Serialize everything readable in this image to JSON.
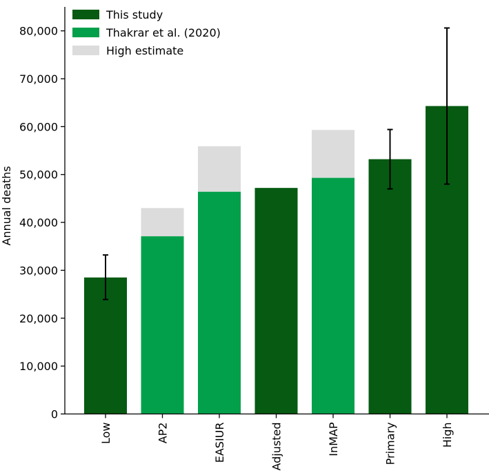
{
  "chart_data": {
    "type": "bar",
    "title": "",
    "xlabel": "",
    "ylabel": "Annual deaths",
    "ylim": [
      0,
      85000
    ],
    "yticks": [
      0,
      10000,
      20000,
      30000,
      40000,
      50000,
      60000,
      70000,
      80000
    ],
    "ytick_labels": [
      "0",
      "10,000",
      "20,000",
      "30,000",
      "40,000",
      "50,000",
      "60,000",
      "70,000",
      "80,000"
    ],
    "grid": false,
    "legend_position": "top-left",
    "colors": {
      "This study": "#065a12",
      "Thakrar et al. (2020)": "#02a04b",
      "High estimate": "#dcdcdc",
      "error_bar": "#000000"
    },
    "legend": [
      "This study",
      "Thakrar et al. (2020)",
      "High estimate"
    ],
    "bars": [
      {
        "category": "Low",
        "group": "This study",
        "value": 28500,
        "error_low": 23900,
        "error_high": 33200
      },
      {
        "category": "AP2",
        "group": "Thakrar et al. (2020)",
        "value": 37100,
        "high_estimate": 43000
      },
      {
        "category": "EASIUR",
        "group": "Thakrar et al. (2020)",
        "value": 46400,
        "high_estimate": 55900
      },
      {
        "category": "Adjusted",
        "group": "This study",
        "value": 47200
      },
      {
        "category": "InMAP",
        "group": "Thakrar et al. (2020)",
        "value": 49300,
        "high_estimate": 59300
      },
      {
        "category": "Primary",
        "group": "This study",
        "value": 53200,
        "error_low": 47000,
        "error_high": 59400
      },
      {
        "category": "High",
        "group": "This study",
        "value": 64300,
        "error_low": 48000,
        "error_high": 80600
      }
    ]
  }
}
